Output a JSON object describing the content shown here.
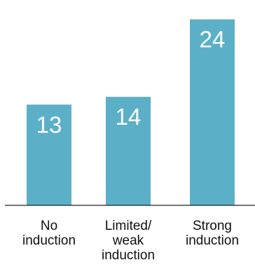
{
  "chart_data": {
    "type": "bar",
    "categories": [
      [
        "No",
        "induction"
      ],
      [
        "Limited/",
        "weak",
        "induction"
      ],
      [
        "Strong",
        "induction"
      ]
    ],
    "values": [
      13,
      14,
      24
    ],
    "value_labels": [
      "13",
      "14",
      "24"
    ],
    "title": "",
    "xlabel": "",
    "ylabel": "",
    "ylim": [
      0,
      26.5
    ],
    "grid": false,
    "legend": "none"
  },
  "colors": {
    "bar": "#5bb0c8",
    "value_text": "#ffffff",
    "axis": "#222222",
    "category_text": "#111111",
    "background": "#ffffff"
  }
}
